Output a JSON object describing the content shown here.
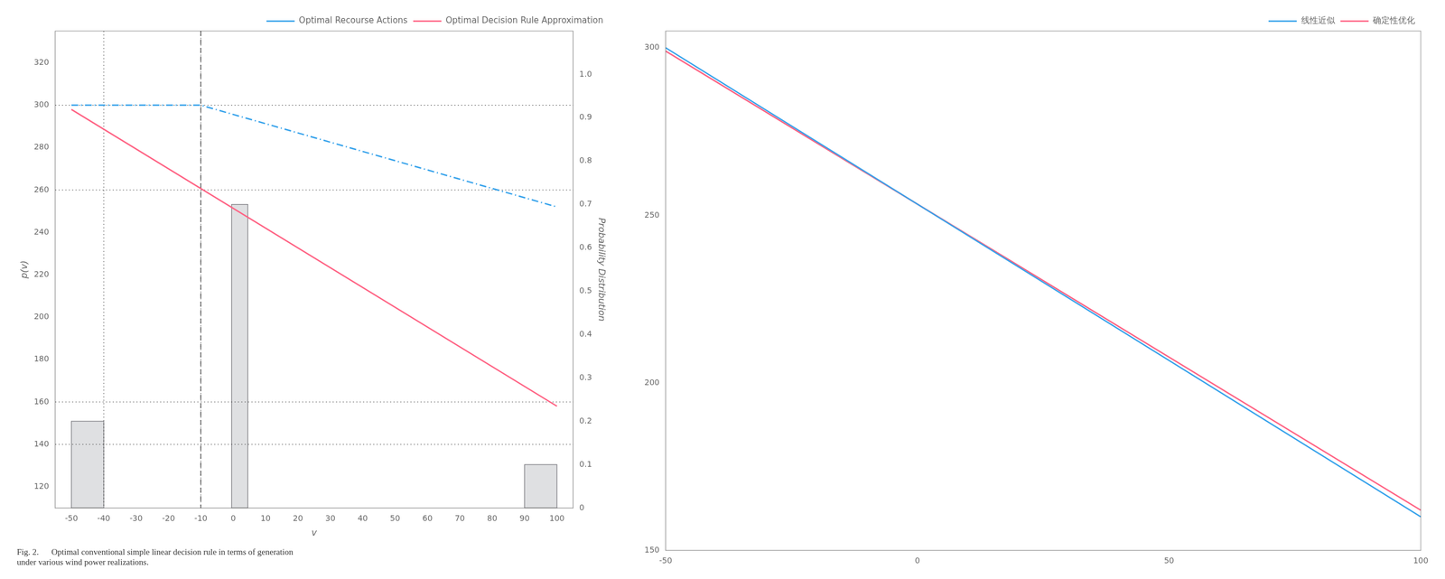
{
  "chart_data": [
    {
      "type": "line",
      "xlabel": "v",
      "ylabel": "p(v)",
      "y2label": "Probability Distribution",
      "xlim": [
        -55,
        105
      ],
      "xticks": [
        -50,
        -40,
        -30,
        -20,
        -10,
        0,
        10,
        20,
        30,
        40,
        50,
        60,
        70,
        80,
        90,
        100
      ],
      "ylim": [
        110,
        335
      ],
      "yticks": [
        120,
        140,
        160,
        180,
        200,
        220,
        240,
        260,
        280,
        300,
        320
      ],
      "y2lim": [
        0,
        1.1
      ],
      "y2ticks": [
        0,
        0.1,
        0.2,
        0.3,
        0.4,
        0.5,
        0.6,
        0.7,
        0.8,
        0.9,
        {
          "value": 1.0,
          "label": "1.0"
        }
      ],
      "grid": false,
      "legend": "upper right",
      "caption": "Fig. 2.      Optimal conventional simple linear decision rule in terms of generation\nunder various wind power realizations.",
      "series": [
        {
          "type": "bar",
          "axis": "y2",
          "x": [
            -45,
            2,
            95
          ],
          "widths": [
            10,
            5,
            10
          ],
          "values": [
            0.2,
            0.7,
            0.1
          ]
        },
        {
          "name": "Optimal Recourse Actions",
          "x": [
            -50,
            -10,
            100
          ],
          "values": [
            300,
            300,
            252
          ],
          "line_style": "dashdot"
        },
        {
          "name": "Optimal Decision Rule Approximation",
          "x": [
            -50,
            100
          ],
          "values": [
            298,
            158
          ],
          "line_style": "solid"
        }
      ],
      "reference_lines": [
        {
          "axis": "y",
          "value": 140,
          "line_style": "dotted"
        },
        {
          "axis": "y",
          "value": 160,
          "line_style": "dotted"
        },
        {
          "axis": "y",
          "value": 260,
          "line_style": "dotted"
        },
        {
          "axis": "y",
          "value": 300,
          "line_style": "dotted"
        },
        {
          "axis": "x",
          "value": -40,
          "line_style": "dotted"
        },
        {
          "axis": "x",
          "value": -10,
          "line_style": "dotted"
        },
        {
          "axis": "x",
          "value": -10,
          "line_style": "dashed"
        }
      ]
    },
    {
      "type": "line",
      "xlim": [
        -50,
        100
      ],
      "xticks": [
        -50,
        0,
        50,
        100
      ],
      "ylim": [
        150,
        305
      ],
      "yticks": [
        150,
        200,
        250,
        300
      ],
      "grid": false,
      "legend": "upper right",
      "series": [
        {
          "name": "线性近似",
          "x": [
            -50,
            100
          ],
          "values": [
            300,
            160
          ],
          "line_style": "solid"
        },
        {
          "name": "确定性优化",
          "x": [
            -50,
            100
          ],
          "values": [
            299,
            162
          ],
          "line_style": "solid"
        }
      ]
    }
  ]
}
